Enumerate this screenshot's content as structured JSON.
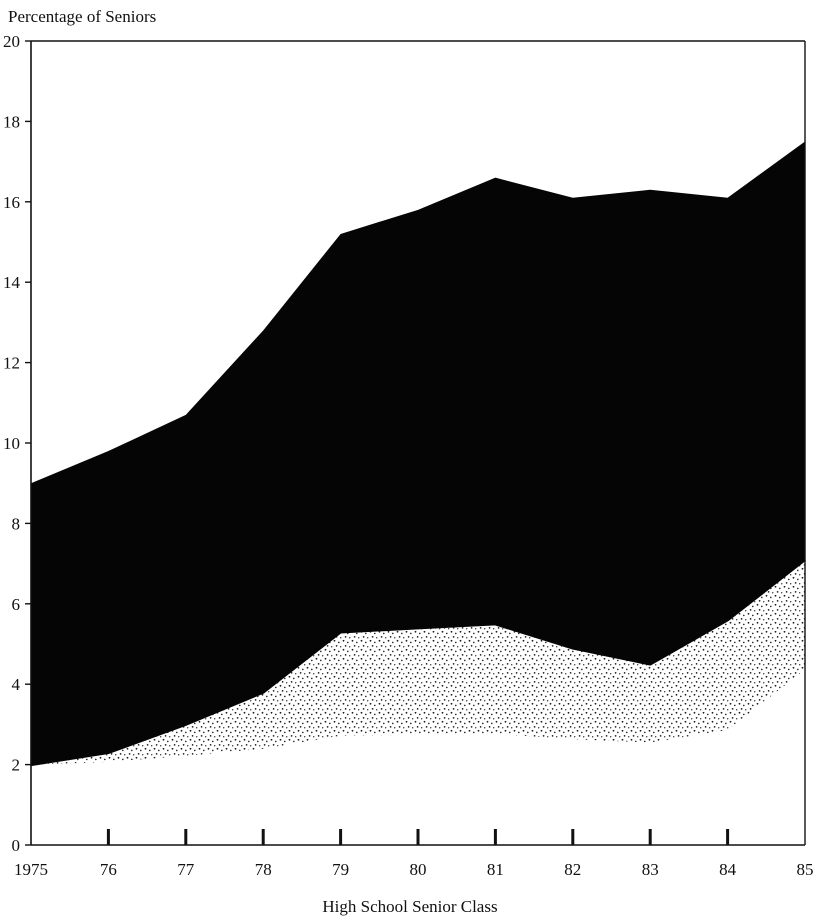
{
  "chart_data": {
    "type": "area",
    "title": "",
    "xlabel": "High School Senior Class",
    "ylabel": "Percentage of Seniors",
    "x": [
      1975,
      1976,
      1977,
      1978,
      1979,
      1980,
      1981,
      1982,
      1983,
      1984,
      1985
    ],
    "xtick_labels": [
      "1975",
      "76",
      "77",
      "78",
      "79",
      "80",
      "81",
      "82",
      "83",
      "84",
      "85"
    ],
    "ytick_labels": [
      "0",
      "2",
      "4",
      "6",
      "8",
      "10",
      "12",
      "14",
      "16",
      "18",
      "20"
    ],
    "ylim": [
      0,
      20
    ],
    "grid": false,
    "series": [
      {
        "label_shown": false,
        "fill": "stippled",
        "values": [
          2.0,
          2.3,
          3.0,
          3.8,
          5.3,
          5.4,
          5.5,
          4.9,
          4.5,
          5.6,
          7.1
        ]
      },
      {
        "label_shown": false,
        "fill": "solid",
        "values": [
          9.0,
          9.8,
          10.7,
          12.8,
          15.2,
          15.8,
          16.6,
          16.1,
          16.3,
          16.1,
          17.5
        ]
      }
    ],
    "colors": {
      "solid_band": "#050505",
      "stipple_band": "#1a1a1a",
      "axis": "#111111",
      "background": "#ffffff"
    }
  }
}
